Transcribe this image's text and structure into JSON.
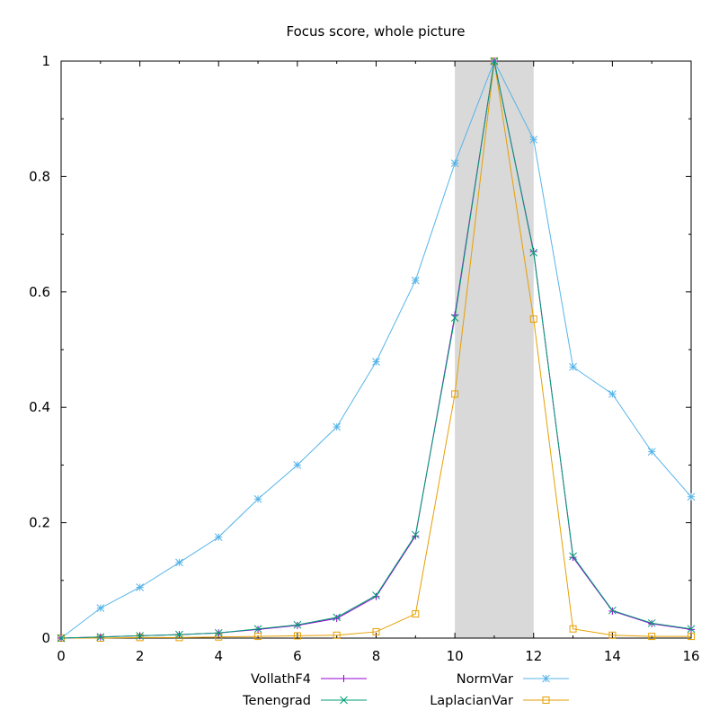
{
  "chart_data": {
    "type": "line",
    "title": "Focus score, whole picture",
    "xlabel": "",
    "ylabel": "",
    "xlim": [
      0,
      16
    ],
    "ylim": [
      0,
      1
    ],
    "x_ticks": [
      "0",
      "2",
      "4",
      "6",
      "8",
      "10",
      "12",
      "14",
      "16"
    ],
    "y_ticks": [
      "0",
      "0.2",
      "0.4",
      "0.6",
      "0.8",
      "1"
    ],
    "grid": false,
    "legend_position": "bottom-center",
    "highlight_band": {
      "x_range": [
        10,
        12
      ],
      "color": "#d9d9d9"
    },
    "x": [
      0,
      1,
      2,
      3,
      4,
      5,
      6,
      7,
      8,
      9,
      10,
      11,
      12,
      13,
      14,
      15,
      16
    ],
    "series": [
      {
        "name": "VollathF4",
        "color": "#9400d3",
        "marker": "plus",
        "values": [
          0.0,
          0.002,
          0.004,
          0.006,
          0.009,
          0.015,
          0.022,
          0.034,
          0.072,
          0.177,
          0.56,
          1.0,
          0.67,
          0.14,
          0.047,
          0.025,
          0.015
        ]
      },
      {
        "name": "Tenengrad",
        "color": "#009e73",
        "marker": "x",
        "values": [
          0.0,
          0.002,
          0.004,
          0.006,
          0.009,
          0.016,
          0.023,
          0.036,
          0.074,
          0.179,
          0.555,
          1.0,
          0.668,
          0.142,
          0.048,
          0.026,
          0.016
        ]
      },
      {
        "name": "NormVar",
        "color": "#56b4e9",
        "marker": "star",
        "values": [
          0.0,
          0.052,
          0.088,
          0.131,
          0.175,
          0.241,
          0.3,
          0.366,
          0.479,
          0.62,
          0.823,
          1.0,
          0.864,
          0.47,
          0.423,
          0.323,
          0.245
        ]
      },
      {
        "name": "LaplacianVar",
        "color": "#e69f00",
        "marker": "square",
        "values": [
          0.0,
          0.0,
          0.001,
          0.001,
          0.002,
          0.003,
          0.004,
          0.005,
          0.011,
          0.042,
          0.423,
          1.0,
          0.553,
          0.016,
          0.005,
          0.003,
          0.003
        ]
      }
    ]
  }
}
